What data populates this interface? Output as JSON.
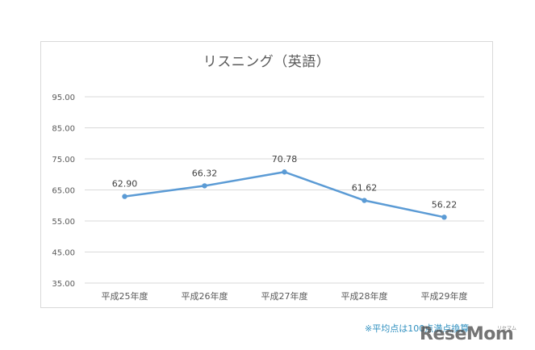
{
  "chart_data": {
    "type": "line",
    "title": "リスニング（英語）",
    "categories": [
      "平成25年度",
      "平成26年度",
      "平成27年度",
      "平成28年度",
      "平成29年度"
    ],
    "series": [
      {
        "values": [
          62.9,
          66.32,
          70.78,
          61.62,
          56.22
        ],
        "data_labels": [
          "62.90",
          "66.32",
          "70.78",
          "61.62",
          "56.22"
        ],
        "color": "#5b9bd5"
      }
    ],
    "y_ticks": [
      "95.00",
      "85.00",
      "75.00",
      "65.00",
      "55.00",
      "45.00",
      "35.00"
    ],
    "ylim": [
      35,
      95
    ],
    "grid": true,
    "gridline_color": "#d9d9d9",
    "legend": "none"
  },
  "footnote": "※平均点は100点満点換算",
  "watermark": {
    "text": "ReseMom",
    "kana": "リセマム"
  }
}
